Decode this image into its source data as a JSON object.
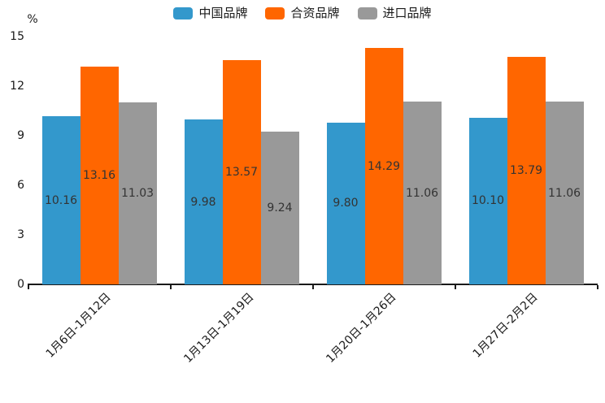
{
  "chart_data": {
    "type": "bar",
    "title": "",
    "unit_label": "%",
    "legend_position": "top",
    "grid": false,
    "categories": [
      "1月6日-1月12日",
      "1月13日-1月19日",
      "1月20日-1月26日",
      "1月27日-2月2日"
    ],
    "series": [
      {
        "name": "中国品牌",
        "color": "#3398CC",
        "values": [
          10.16,
          9.98,
          9.8,
          10.1
        ]
      },
      {
        "name": "合资品牌",
        "color": "#FF6600",
        "values": [
          13.16,
          13.57,
          14.29,
          13.79
        ]
      },
      {
        "name": "进口品牌",
        "color": "#999999",
        "values": [
          11.03,
          9.24,
          11.06,
          11.06
        ]
      }
    ],
    "y_ticks": [
      0,
      3,
      6,
      9,
      12,
      15
    ],
    "ylim": [
      0,
      15
    ],
    "colors": {
      "axis": "#1a1a1a",
      "value_label_text": "#333333",
      "background": "#ffffff"
    }
  }
}
